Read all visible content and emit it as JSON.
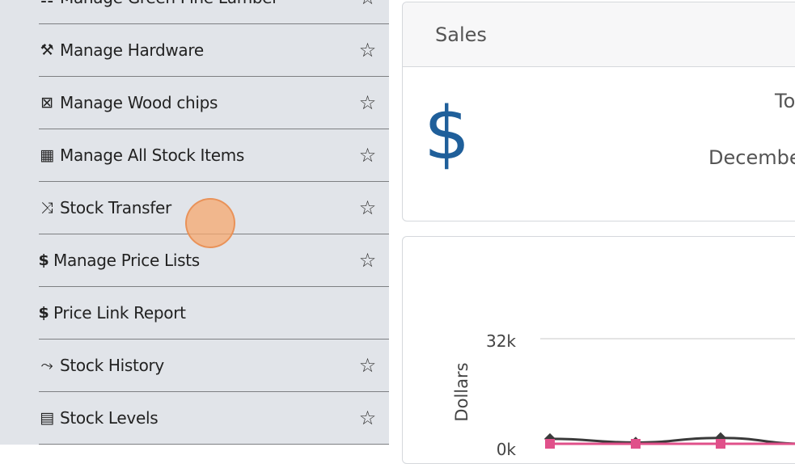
{
  "sidebar": {
    "items": [
      {
        "label": "Manage Green Pine Lumber",
        "icon": "pallet-icon",
        "glyph": "☷",
        "starred": true
      },
      {
        "label": "Manage Hardware",
        "icon": "tools-icon",
        "glyph": "⚒",
        "starred": true
      },
      {
        "label": "Manage Wood chips",
        "icon": "box-x-icon",
        "glyph": "⊠",
        "starred": true
      },
      {
        "label": "Manage All Stock Items",
        "icon": "industry-icon",
        "glyph": "▦",
        "starred": true
      },
      {
        "label": "Stock Transfer",
        "icon": "shuffle-icon",
        "glyph": "⤨",
        "starred": true
      },
      {
        "label": "Manage Price Lists",
        "icon": "dollar-icon",
        "glyph": "$",
        "starred": true
      },
      {
        "label": "Price Link Report",
        "icon": "dollar-icon",
        "glyph": "$",
        "starred": false
      },
      {
        "label": "Stock History",
        "icon": "line-chart-icon",
        "glyph": "⤳",
        "starred": true
      },
      {
        "label": "Stock Levels",
        "icon": "file-icon",
        "glyph": "▤",
        "starred": true
      }
    ],
    "star_glyph": "☆"
  },
  "sales": {
    "title": "Sales",
    "symbol": "$",
    "total_label": "To",
    "period_label": "Decembe"
  },
  "chart_data": {
    "type": "line",
    "ylabel": "Dollars",
    "y_ticks": [
      "32k",
      "0k"
    ],
    "ylim": [
      0,
      32000
    ],
    "series": [
      {
        "color": "#3a3a3a",
        "marker": "diamond",
        "values": [
          1500,
          400,
          1800,
          0
        ]
      },
      {
        "color": "#e0508a",
        "marker": "square",
        "values": [
          0,
          0,
          0,
          0
        ]
      }
    ],
    "accent": "#1f5f9a"
  }
}
